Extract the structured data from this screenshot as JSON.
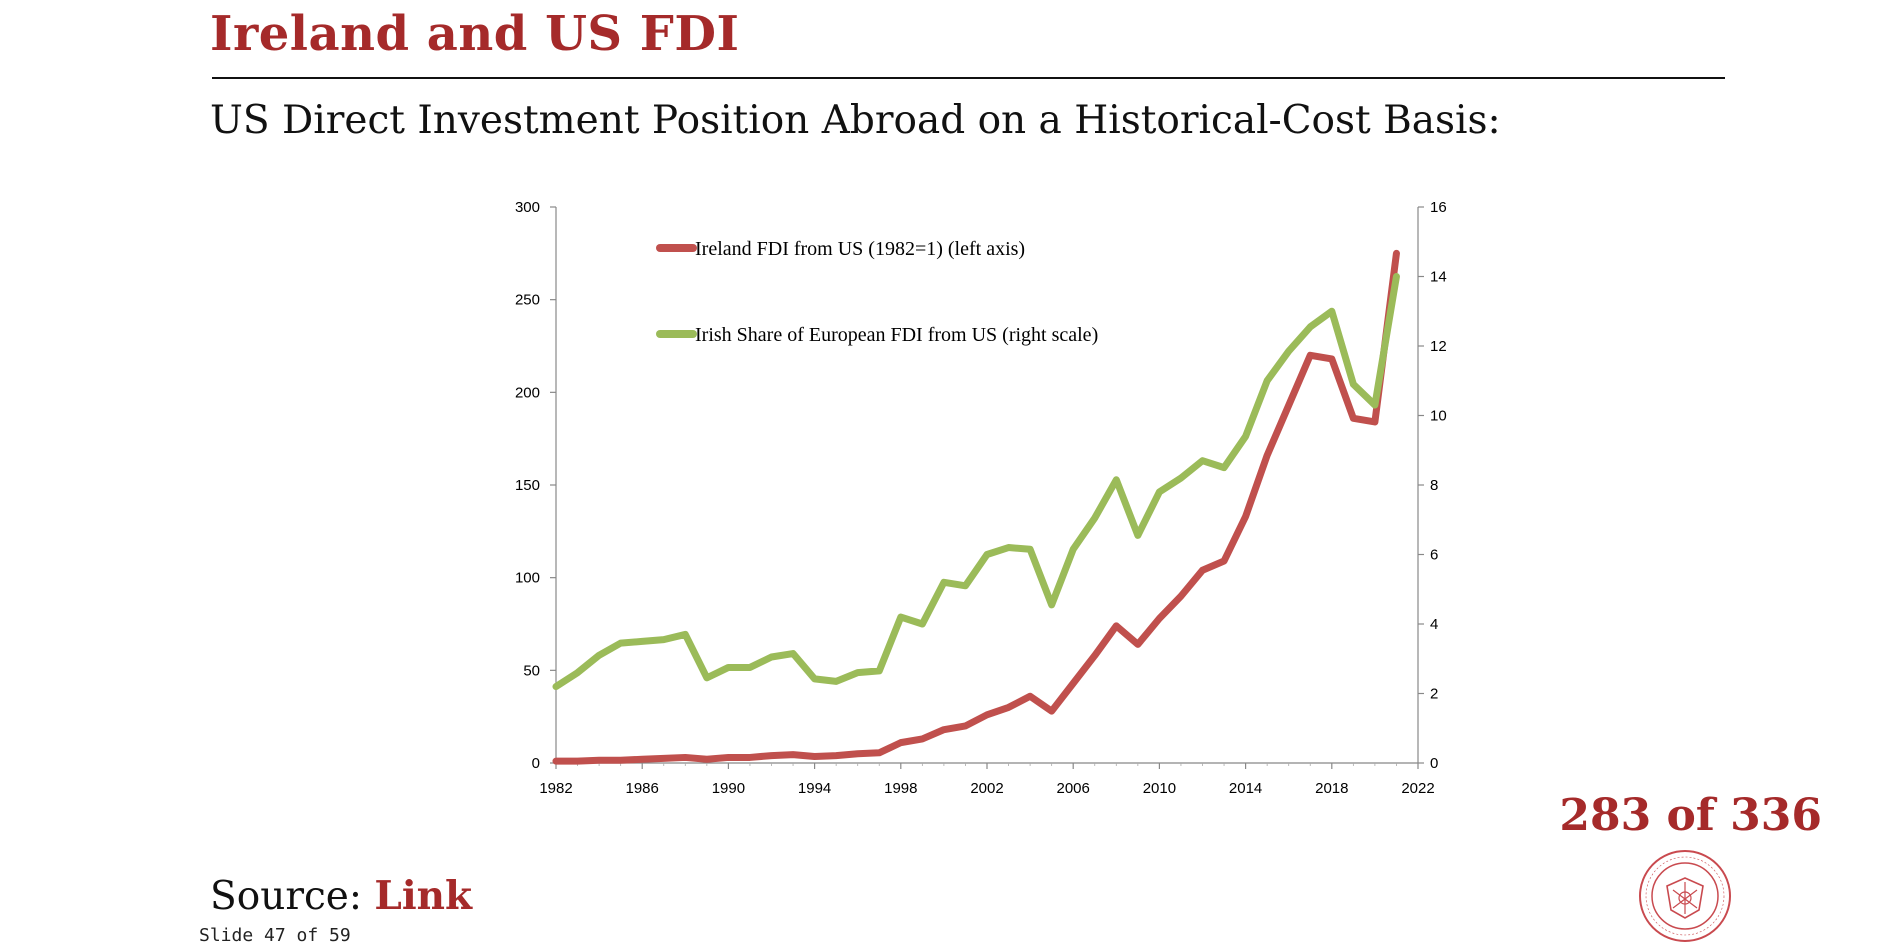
{
  "slide": {
    "title": "Ireland and US FDI",
    "subtitle": "US Direct Investment Position Abroad on a Historical-Cost Basis:",
    "source_prefix": "Source: ",
    "source_link": "Link",
    "slide_number": "Slide 47 of 59",
    "page_count": "283 of 336",
    "logo_icon": "carnegie-mellon-seal-icon",
    "accent_color": "#a52a2a"
  },
  "chart_data": {
    "type": "line",
    "x": [
      1982,
      1983,
      1984,
      1985,
      1986,
      1987,
      1988,
      1989,
      1990,
      1991,
      1992,
      1993,
      1994,
      1995,
      1996,
      1997,
      1998,
      1999,
      2000,
      2001,
      2002,
      2003,
      2004,
      2005,
      2006,
      2007,
      2008,
      2009,
      2010,
      2011,
      2012,
      2013,
      2014,
      2015,
      2016,
      2017,
      2018,
      2019,
      2020,
      2021
    ],
    "x_ticks": [
      1982,
      1986,
      1990,
      1994,
      1998,
      2002,
      2006,
      2010,
      2014,
      2018,
      2022
    ],
    "xlim": [
      1982,
      2022
    ],
    "y_left_ticks": [
      0,
      50,
      100,
      150,
      200,
      250,
      300
    ],
    "ylim_left": [
      0,
      300
    ],
    "y_right_ticks": [
      0,
      2,
      4,
      6,
      8,
      10,
      12,
      14,
      16
    ],
    "ylim_right": [
      0,
      16
    ],
    "grid": false,
    "legend_position": "top-left",
    "series": [
      {
        "name": "Ireland FDI  from US (1982=1) (left axis)",
        "axis": "left",
        "color": "#c0504d",
        "values": [
          1,
          1,
          1.5,
          1.5,
          2,
          2.5,
          3,
          2,
          3,
          3,
          4,
          4.5,
          3.5,
          4,
          5,
          5.5,
          11,
          13,
          18,
          20,
          26,
          30,
          36,
          28,
          43,
          58,
          74,
          64,
          78,
          90,
          104,
          109,
          133,
          166,
          193,
          220,
          218,
          186,
          184,
          275
        ]
      },
      {
        "name": "Irish Share of European FDI from US (right scale)",
        "axis": "right",
        "color": "#9bbb59",
        "values": [
          2.2,
          2.6,
          3.1,
          3.45,
          3.5,
          3.55,
          3.7,
          2.45,
          2.75,
          2.75,
          3.05,
          3.15,
          2.42,
          2.35,
          2.6,
          2.65,
          4.2,
          4.0,
          5.2,
          5.1,
          6.0,
          6.2,
          6.15,
          4.55,
          6.15,
          7.05,
          8.15,
          6.55,
          7.8,
          8.2,
          8.7,
          8.5,
          9.4,
          11.0,
          11.85,
          12.55,
          13.0,
          10.9,
          10.3,
          14.0
        ]
      }
    ]
  }
}
